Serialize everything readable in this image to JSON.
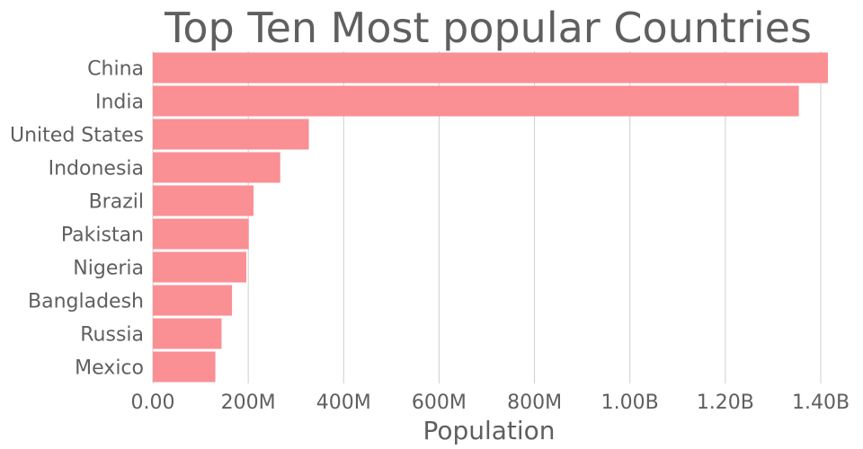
{
  "chart_data": {
    "type": "bar",
    "orientation": "horizontal",
    "title": "Top Ten Most popular Countries",
    "xlabel": "Population",
    "ylabel": "",
    "categories": [
      "China",
      "India",
      "United States",
      "Indonesia",
      "Brazil",
      "Pakistan",
      "Nigeria",
      "Bangladesh",
      "Russia",
      "Mexico"
    ],
    "values": [
      1415000000,
      1354000000,
      327000000,
      267000000,
      211000000,
      201000000,
      196000000,
      166000000,
      144000000,
      131000000
    ],
    "xlim": [
      0,
      1400000000
    ],
    "xticks": [
      0,
      200000000,
      400000000,
      600000000,
      800000000,
      1000000000,
      1200000000,
      1400000000
    ],
    "xtick_labels": [
      "0.00",
      "200M",
      "400M",
      "600M",
      "800M",
      "1.00B",
      "1.20B",
      "1.40B"
    ],
    "grid": true,
    "colors": {
      "bar": "#fa8f94",
      "text": "#5f5f5f",
      "grid": "#cfcfcf"
    }
  }
}
